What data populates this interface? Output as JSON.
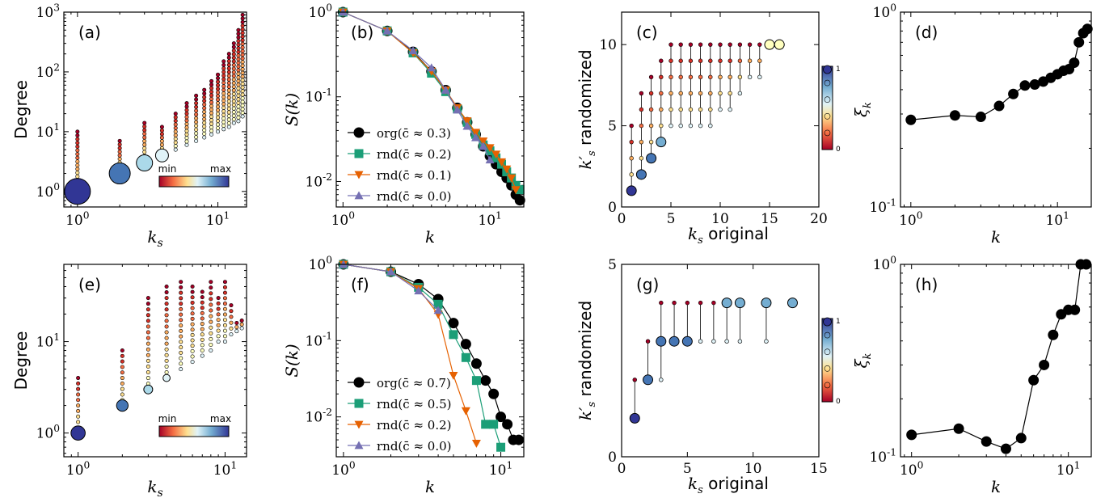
{
  "chart_data": [
    {
      "panel": "a",
      "panel_label": "(a)",
      "type": "scatter",
      "xlabel": "k_s",
      "ylabel": "Degree",
      "xscale": "log",
      "yscale": "log",
      "xlim": [
        0.8,
        16
      ],
      "ylim": [
        0.55,
        1000
      ],
      "colorbar": {
        "min_label": "min",
        "max_label": "max"
      },
      "x_ticks": [
        "10^0",
        "10^1"
      ],
      "y_ticks": [
        "10^0",
        "10^1",
        "10^2",
        "10^3"
      ],
      "note": "degree range per k_s shell; marker size/color = node count",
      "columns": [
        {
          "ks": 1,
          "lo": 1,
          "hi": 10,
          "big": 1
        },
        {
          "ks": 2,
          "lo": 2,
          "hi": 7,
          "big": 2
        },
        {
          "ks": 3,
          "lo": 3,
          "hi": 14,
          "big": 3
        },
        {
          "ks": 4,
          "lo": 4,
          "hi": 12,
          "big": 4
        },
        {
          "ks": 5,
          "lo": 5,
          "hi": 20
        },
        {
          "ks": 6,
          "lo": 6,
          "hi": 30
        },
        {
          "ks": 7,
          "lo": 7,
          "hi": 40
        },
        {
          "ks": 8,
          "lo": 8,
          "hi": 50
        },
        {
          "ks": 9,
          "lo": 9,
          "hi": 70
        },
        {
          "ks": 10,
          "lo": 10,
          "hi": 90
        },
        {
          "ks": 11,
          "lo": 11,
          "hi": 150
        },
        {
          "ks": 12,
          "lo": 12,
          "hi": 200
        },
        {
          "ks": 13,
          "lo": 14,
          "hi": 300
        },
        {
          "ks": 14,
          "lo": 15,
          "hi": 500
        },
        {
          "ks": 15,
          "lo": 18,
          "hi": 900
        }
      ]
    },
    {
      "panel": "b",
      "panel_label": "(b)",
      "type": "line",
      "xlabel": "k",
      "ylabel": "S(k)",
      "xscale": "log",
      "yscale": "log",
      "xlim": [
        0.9,
        17
      ],
      "ylim": [
        0.005,
        1
      ],
      "x_ticks": [
        "10^0",
        "10^1"
      ],
      "y_ticks": [
        "10^-2",
        "10^-1",
        "10^0"
      ],
      "series": [
        {
          "name": "org(c̄ ≈ 0.3)",
          "color": "#000000",
          "marker": "circle",
          "x": [
            1,
            2,
            3,
            4,
            5,
            6,
            7,
            8,
            9,
            10,
            11,
            12,
            13,
            14,
            15,
            16
          ],
          "y": [
            1,
            0.6,
            0.34,
            0.2,
            0.12,
            0.074,
            0.05,
            0.036,
            0.026,
            0.02,
            0.016,
            0.013,
            0.011,
            0.009,
            0.007,
            0.006
          ]
        },
        {
          "name": "rnd(c̄ ≈ 0.2)",
          "color": "#1b9e77",
          "marker": "square",
          "x": [
            1,
            2,
            3,
            4,
            5,
            6,
            7,
            8,
            9,
            10,
            11,
            12,
            13,
            14,
            15,
            16
          ],
          "y": [
            1,
            0.6,
            0.33,
            0.19,
            0.115,
            0.072,
            0.05,
            0.036,
            0.027,
            0.023,
            0.019,
            0.016,
            0.013,
            0.011,
            0.009,
            0.008
          ]
        },
        {
          "name": "rnd(c̄ ≈ 0.1)",
          "color": "#e66101",
          "marker": "triangle-down",
          "x": [
            1,
            2,
            3,
            4,
            5,
            6,
            7,
            8,
            9,
            10,
            11,
            12,
            13,
            14,
            15
          ],
          "y": [
            1,
            0.6,
            0.33,
            0.2,
            0.12,
            0.074,
            0.052,
            0.038,
            0.03,
            0.025,
            0.021,
            0.017,
            0.014,
            0.011,
            0.008
          ]
        },
        {
          "name": "rnd(c̄ ≈ 0.0)",
          "color": "#7570b3",
          "marker": "triangle-up",
          "x": [
            1,
            2,
            3,
            4,
            5,
            6,
            7,
            8,
            9,
            10
          ],
          "y": [
            1,
            0.6,
            0.35,
            0.22,
            0.12,
            0.07,
            0.045,
            0.033,
            0.026,
            0.018
          ]
        }
      ]
    },
    {
      "panel": "c",
      "panel_label": "(c)",
      "type": "scatter",
      "xlabel": "k_s original",
      "ylabel": "k'_s randomized",
      "xlim": [
        0,
        20
      ],
      "ylim": [
        0,
        12
      ],
      "x_ticks": [
        0,
        5,
        10,
        15,
        20
      ],
      "y_ticks": [
        0,
        5,
        10
      ],
      "colorbar": {
        "min_label": "0",
        "max_label": "1"
      },
      "columns": [
        {
          "x": 1,
          "lo": 1,
          "hi": 5,
          "big": 1
        },
        {
          "x": 2,
          "lo": 2,
          "hi": 7,
          "big": 2
        },
        {
          "x": 3,
          "lo": 3,
          "hi": 8,
          "big": 3
        },
        {
          "x": 4,
          "lo": 4,
          "hi": 9,
          "big": 4
        },
        {
          "x": 5,
          "lo": 5,
          "hi": 10
        },
        {
          "x": 6,
          "lo": 5,
          "hi": 10
        },
        {
          "x": 7,
          "lo": 5,
          "hi": 10
        },
        {
          "x": 8,
          "lo": 5,
          "hi": 10
        },
        {
          "x": 9,
          "lo": 5,
          "hi": 10
        },
        {
          "x": 10,
          "lo": 6,
          "hi": 10
        },
        {
          "x": 11,
          "lo": 6,
          "hi": 10
        },
        {
          "x": 12,
          "lo": 7,
          "hi": 10
        },
        {
          "x": 13,
          "lo": 8,
          "hi": 10
        },
        {
          "x": 14,
          "lo": 8,
          "hi": 10
        },
        {
          "x": 15,
          "lo": 10,
          "hi": 10,
          "big": 10
        },
        {
          "x": 16,
          "lo": 10,
          "hi": 10,
          "big": 10
        }
      ]
    },
    {
      "panel": "d",
      "panel_label": "(d)",
      "type": "line",
      "xlabel": "k",
      "ylabel": "ξ_k",
      "xscale": "log",
      "yscale": "log",
      "xlim": [
        0.85,
        17
      ],
      "ylim": [
        0.1,
        1
      ],
      "x_ticks": [
        "10^0",
        "10^1"
      ],
      "y_ticks": [
        "10^-1",
        "10^0"
      ],
      "series": [
        {
          "x": [
            1,
            2,
            3,
            4,
            5,
            6,
            7,
            8,
            9,
            10,
            11,
            12,
            13,
            14,
            15,
            16
          ],
          "y": [
            0.28,
            0.295,
            0.29,
            0.33,
            0.38,
            0.42,
            0.425,
            0.44,
            0.46,
            0.48,
            0.5,
            0.51,
            0.55,
            0.7,
            0.78,
            0.82
          ]
        }
      ]
    },
    {
      "panel": "e",
      "panel_label": "(e)",
      "type": "scatter",
      "xlabel": "k_s",
      "ylabel": "Degree",
      "xscale": "log",
      "yscale": "log",
      "xlim": [
        0.8,
        14
      ],
      "ylim": [
        0.55,
        70
      ],
      "colorbar": {
        "min_label": "min",
        "max_label": "max"
      },
      "x_ticks": [
        "10^0",
        "10^1"
      ],
      "y_ticks": [
        "10^0",
        "10^1"
      ],
      "columns": [
        {
          "ks": 1,
          "lo": 1,
          "hi": 4,
          "big": 1
        },
        {
          "ks": 2,
          "lo": 2,
          "hi": 8,
          "big": 2
        },
        {
          "ks": 3,
          "lo": 3,
          "hi": 30,
          "big": 3
        },
        {
          "ks": 4,
          "lo": 4,
          "hi": 40,
          "big": 4
        },
        {
          "ks": 5,
          "lo": 5,
          "hi": 45
        },
        {
          "ks": 6,
          "lo": 6,
          "hi": 40
        },
        {
          "ks": 7,
          "lo": 7,
          "hi": 35
        },
        {
          "ks": 8,
          "lo": 8,
          "hi": 45
        },
        {
          "ks": 9,
          "lo": 10,
          "hi": 30
        },
        {
          "ks": 10,
          "lo": 10,
          "hi": 45
        },
        {
          "ks": 11,
          "lo": 12,
          "hi": 25
        },
        {
          "ks": 12,
          "lo": 13,
          "hi": 16
        },
        {
          "ks": 13,
          "lo": 14,
          "hi": 17
        }
      ]
    },
    {
      "panel": "f",
      "panel_label": "(f)",
      "type": "line",
      "xlabel": "k",
      "ylabel": "S(k)",
      "xscale": "log",
      "yscale": "log",
      "xlim": [
        0.9,
        14
      ],
      "ylim": [
        0.003,
        1
      ],
      "x_ticks": [
        "10^0",
        "10^1"
      ],
      "y_ticks": [
        "10^-2",
        "10^-1",
        "10^0"
      ],
      "series": [
        {
          "name": "org(c̄ ≈ 0.7)",
          "color": "#000000",
          "marker": "circle",
          "x": [
            1,
            2,
            3,
            4,
            5,
            6,
            7,
            8,
            9,
            10,
            11,
            12,
            13
          ],
          "y": [
            1,
            0.8,
            0.55,
            0.35,
            0.17,
            0.09,
            0.05,
            0.03,
            0.02,
            0.01,
            0.008,
            0.005,
            0.005
          ]
        },
        {
          "name": "rnd(c̄ ≈ 0.5)",
          "color": "#1b9e77",
          "marker": "square",
          "x": [
            1,
            2,
            3,
            4,
            5,
            6,
            7,
            8,
            9,
            10
          ],
          "y": [
            1,
            0.8,
            0.5,
            0.3,
            0.12,
            0.06,
            0.03,
            0.008,
            0.008,
            0.004
          ]
        },
        {
          "name": "rnd(c̄ ≈ 0.2)",
          "color": "#e66101",
          "marker": "triangle-down",
          "x": [
            1,
            2,
            3,
            4,
            5,
            6,
            7
          ],
          "y": [
            1,
            0.8,
            0.48,
            0.22,
            0.035,
            0.012,
            0.0045
          ]
        },
        {
          "name": "rnd(c̄ ≈ 0.0)",
          "color": "#7570b3",
          "marker": "triangle-up",
          "x": [
            1,
            2,
            3,
            4
          ],
          "y": [
            1,
            0.8,
            0.45,
            0.25
          ]
        }
      ]
    },
    {
      "panel": "g",
      "panel_label": "(g)",
      "type": "scatter",
      "xlabel": "k_s original",
      "ylabel": "k'_s randomized",
      "xlim": [
        0,
        15
      ],
      "ylim": [
        0,
        5
      ],
      "x_ticks": [
        0,
        5,
        10,
        15
      ],
      "y_ticks": [
        0,
        5
      ],
      "colorbar": {
        "min_label": "0",
        "max_label": "1"
      },
      "columns": [
        {
          "x": 1,
          "lo": 1,
          "hi": 2,
          "big": 1
        },
        {
          "x": 2,
          "lo": 2,
          "hi": 3,
          "big": 2
        },
        {
          "x": 3,
          "lo": 2,
          "hi": 4,
          "big": 3
        },
        {
          "x": 4,
          "lo": 3,
          "hi": 4,
          "big": 3
        },
        {
          "x": 5,
          "lo": 3,
          "hi": 4,
          "big": 3
        },
        {
          "x": 6,
          "lo": 3,
          "hi": 4
        },
        {
          "x": 7,
          "lo": 3,
          "hi": 4
        },
        {
          "x": 8,
          "lo": 3,
          "hi": 4,
          "big": 4
        },
        {
          "x": 9,
          "lo": 3,
          "hi": 4,
          "big": 4
        },
        {
          "x": 11,
          "lo": 3,
          "hi": 4,
          "big": 4
        },
        {
          "x": 13,
          "lo": 4,
          "hi": 4,
          "big": 4
        }
      ]
    },
    {
      "panel": "h",
      "panel_label": "(h)",
      "type": "line",
      "xlabel": "k",
      "ylabel": "ξ_k",
      "xscale": "log",
      "yscale": "log",
      "xlim": [
        0.85,
        14
      ],
      "ylim": [
        0.1,
        1
      ],
      "x_ticks": [
        "10^0",
        "10^1"
      ],
      "y_ticks": [
        "10^-1",
        "10^0"
      ],
      "series": [
        {
          "x": [
            1,
            2,
            3,
            4,
            5,
            6,
            7,
            8,
            9,
            10,
            11,
            12,
            13
          ],
          "y": [
            0.13,
            0.14,
            0.12,
            0.11,
            0.125,
            0.25,
            0.3,
            0.43,
            0.55,
            0.58,
            0.58,
            1.0,
            1.0
          ]
        }
      ]
    }
  ]
}
